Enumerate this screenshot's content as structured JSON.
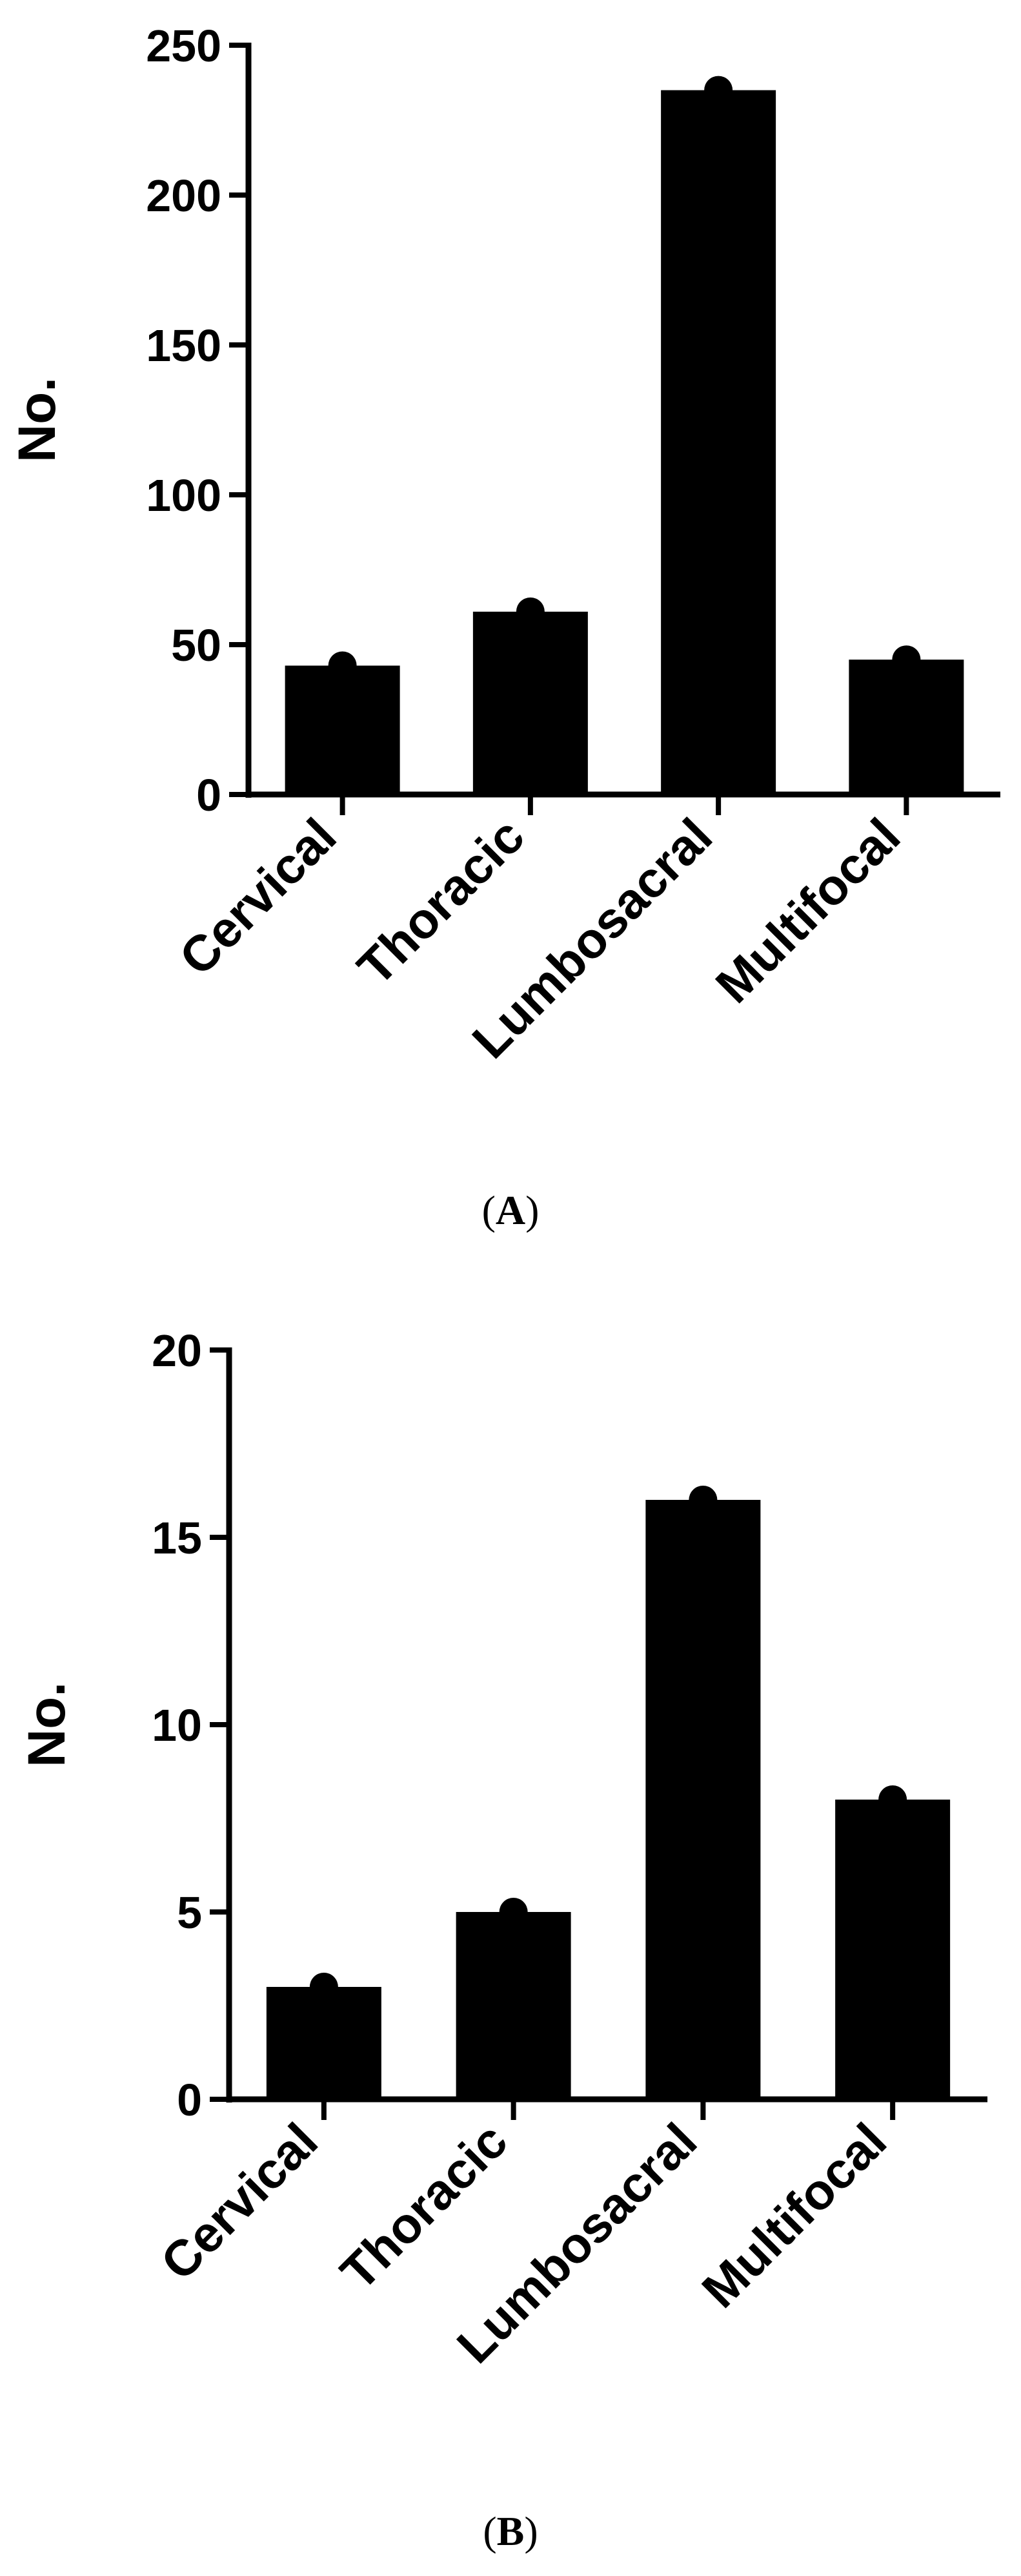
{
  "colors": {
    "bar": "#000000",
    "point": "#000000",
    "axis": "#000000",
    "background": "#ffffff"
  },
  "chart_data": [
    {
      "panel": "A",
      "type": "bar",
      "caption": "(A)",
      "ylabel": "No.",
      "xlabel": "",
      "categories": [
        "Cervical",
        "Thoracic",
        "Lumbosacral",
        "Multifocal"
      ],
      "values": [
        43,
        61,
        235,
        45
      ],
      "ylim": [
        0,
        250
      ],
      "yticks": [
        0,
        50,
        100,
        150,
        200,
        250
      ],
      "grid": false,
      "legend": "none"
    },
    {
      "panel": "B",
      "type": "bar",
      "caption": "(B)",
      "ylabel": "No.",
      "xlabel": "",
      "categories": [
        "Cervical",
        "Thoracic",
        "Lumbosacral",
        "Multifocal"
      ],
      "values": [
        3,
        5,
        16,
        8
      ],
      "ylim": [
        0,
        20
      ],
      "yticks": [
        0,
        5,
        10,
        15,
        20
      ],
      "grid": false,
      "legend": "none"
    }
  ]
}
